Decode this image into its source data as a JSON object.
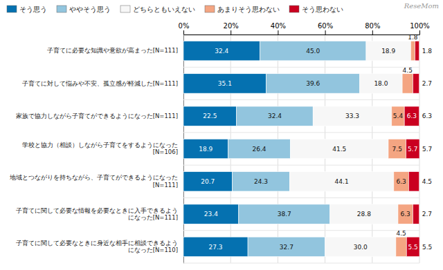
{
  "chart_data": {
    "type": "bar",
    "orientation": "horizontal",
    "stacked": true,
    "data_labels": true,
    "grid": true,
    "legend": "top",
    "categories": [
      "子育てに必要な知識や意欲が高まった[N=111]",
      "子育てに対して悩みや不安、孤立感が軽減した[N=111]",
      "家族で協力しながら子育てができるようになった[N=111]",
      "学校と協力（相談）しながら子育てをするようになった\n[N=106]",
      "地域とつながりを持ちながら、子育てができるようになった\n[N=111]",
      "子育てに関して必要な情報を必要なときに入手できるよう\nになった[N=111]",
      "子育てに関して必要なときに身近な相手に相談できるよう\nになった[N=110]"
    ],
    "series": [
      {
        "name": "そう思う",
        "values": [
          32.4,
          35.1,
          22.5,
          18.9,
          20.7,
          23.4,
          27.3
        ],
        "value_labels": [
          "32.4",
          "35.1",
          "22.5",
          "18.9",
          "20.7",
          "23.4",
          "27.3"
        ]
      },
      {
        "name": "ややそう思う",
        "values": [
          45.0,
          39.6,
          32.4,
          26.4,
          24.3,
          38.7,
          32.7
        ],
        "value_labels": [
          "45.0",
          "39.6",
          "32.4",
          "26.4",
          "24.3",
          "38.7",
          "32.7"
        ]
      },
      {
        "name": "どちらともいえない",
        "values": [
          18.9,
          18.0,
          33.3,
          41.5,
          44.1,
          28.8,
          30.0
        ],
        "value_labels": [
          "18.9",
          "18.0",
          "33.3",
          "41.5",
          "44.1",
          "28.8",
          "30.0"
        ]
      },
      {
        "name": "あまりそう思わない",
        "values": [
          1.8,
          4.5,
          5.4,
          7.5,
          6.3,
          6.3,
          4.5
        ],
        "value_labels": [
          "1.8",
          "4.5",
          "5.4",
          "7.5",
          "6.3",
          "6.3",
          "4.5"
        ]
      },
      {
        "name": "そう思わない",
        "values": [
          1.8,
          2.7,
          6.3,
          5.7,
          4.5,
          2.7,
          5.5
        ],
        "value_labels": [
          "1.8",
          "2.7",
          "6.3",
          "5.7",
          "4.5",
          "2.7",
          "5.5"
        ]
      }
    ],
    "xlim": [
      0,
      100
    ],
    "xticks": [
      {
        "value": 0,
        "label": "0%"
      },
      {
        "value": 20,
        "label": "20%"
      },
      {
        "value": 40,
        "label": "40%"
      },
      {
        "value": 60,
        "label": "60%"
      },
      {
        "value": 80,
        "label": "80%"
      },
      {
        "value": 100,
        "label": "100%"
      }
    ],
    "annotations": [
      {
        "text": "ReseMom"
      }
    ]
  }
}
